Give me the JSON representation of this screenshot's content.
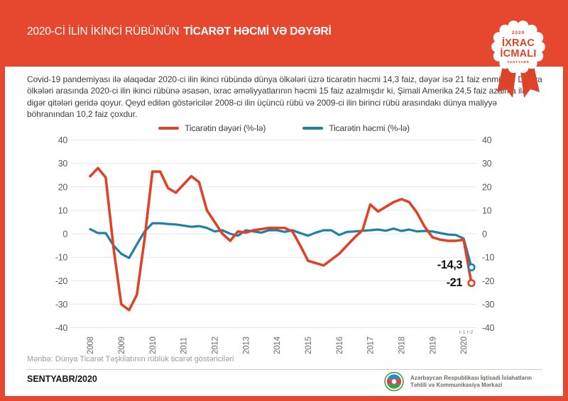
{
  "header": {
    "title_regular": "2020-Cİ İLİN İKİNCİ RÜBÜNÜN",
    "title_bold": "TİCARƏT HƏCMİ VƏ DƏYƏRİ"
  },
  "badge": {
    "year": "2020",
    "line1": "İXRAC",
    "line2": "İCMALI",
    "month": "SENTYABR"
  },
  "intro": {
    "text": "Covid-19 pandemiyası ilə əlaqədar 2020-ci ilin ikinci rübündə dünya ölkələri üzrə ticarətin həcmi 14,3 faiz, dəyər isə 21 faiz enmişdir. Dünya ölkələri arasında 2020-ci ilin ikinci rübünə əsasən, ixrac əməliyyatlarının həcmi 15 faiz azalmışdır ki, Şimali Amerika 24,5 faiz azalma ilə digər qitələri geridə qoyur. Qeyd edilən göstəricilər 2008-ci ilin üçüncü rübü və 2009-ci ilin birinci rübü arasındakı dünya maliyyə böhranından 10,2 faiz çoxdur."
  },
  "legend": {
    "value": {
      "label": "Ticarətin dəyəri (%-lə)"
    },
    "volume": {
      "label": "Ticarətin həcmi (%-lə)"
    }
  },
  "colors": {
    "accent_red": "#e5482e",
    "line_red": "#dd4327",
    "line_blue": "#1f7fa6"
  },
  "chart_data": {
    "type": "line",
    "title": "",
    "xlabel": "",
    "ylabel": "",
    "ylim": [
      -40,
      40
    ],
    "grid": true,
    "legend_position": "top",
    "x_unit": "quarterly, 2008Q1 - 2020Q2",
    "years": [
      "2008",
      "2009",
      "2010",
      "2011",
      "2012",
      "2013",
      "2014",
      "2015",
      "2016",
      "2017",
      "2018",
      "2019",
      "2020"
    ],
    "quarter_marks": [
      "r-1",
      "r-2"
    ],
    "yticks": [
      40,
      30,
      20,
      10,
      0,
      -10,
      -20,
      -30,
      -40
    ],
    "series": [
      {
        "name": "Ticarətin dəyəri (%-lə)",
        "color": "#dd4327",
        "width": 3.6,
        "values": [
          24.5,
          28,
          24,
          -6,
          -30,
          -32.5,
          -26,
          -2,
          26.5,
          26.5,
          19.5,
          17.5,
          21,
          24.5,
          22,
          10,
          5,
          0,
          -3,
          1,
          0.5,
          1.5,
          2,
          2.5,
          2.5,
          2.5,
          1,
          -5,
          -11.5,
          -12.5,
          -13.5,
          -11,
          -8.5,
          -5,
          -1.5,
          1.5,
          12.5,
          9.5,
          11.5,
          13.5,
          14.8,
          13.5,
          9,
          3,
          -1.5,
          -2.5,
          -3,
          -3,
          -2.5,
          -21
        ]
      },
      {
        "name": "Ticarətin həcmi (%-lə)",
        "color": "#1f7fa6",
        "width": 3.2,
        "values": [
          2,
          0.3,
          0.3,
          -5,
          -8.5,
          -10.3,
          -4.5,
          1,
          4.5,
          4.5,
          4.2,
          4,
          3.5,
          3,
          3.3,
          2.5,
          1,
          1.5,
          0,
          -0.8,
          1.5,
          1,
          0.5,
          1.5,
          1.5,
          0.8,
          1.5,
          0.3,
          -0.8,
          0.5,
          1.5,
          1.5,
          -0.5,
          0.8,
          1,
          1.3,
          1.5,
          1.8,
          1.3,
          2.2,
          1.2,
          1.8,
          1,
          1.2,
          1,
          0.3,
          -0.3,
          -0.5,
          -2,
          -14.3
        ]
      }
    ],
    "annotations": [
      {
        "label": "-14,3",
        "for": "Ticarətin həcmi (%-lə) 2020-r2",
        "x": 651,
        "y": 189
      },
      {
        "label": "-21",
        "for": "Ticarətin dəyəri (%-lə) 2020-r2",
        "x": 651,
        "y": 214
      }
    ]
  },
  "source": {
    "text": "Mənbə: Dünya Ticarət Təşkilatının rüblük ticarət göstəriciləri"
  },
  "footer": {
    "issue": "SENTYABR/2020",
    "org1": "Azərbaycan Respublikası İqtisadi İslahatların",
    "org2": "Təhlili və Kommunikasiya Mərkəzi"
  }
}
